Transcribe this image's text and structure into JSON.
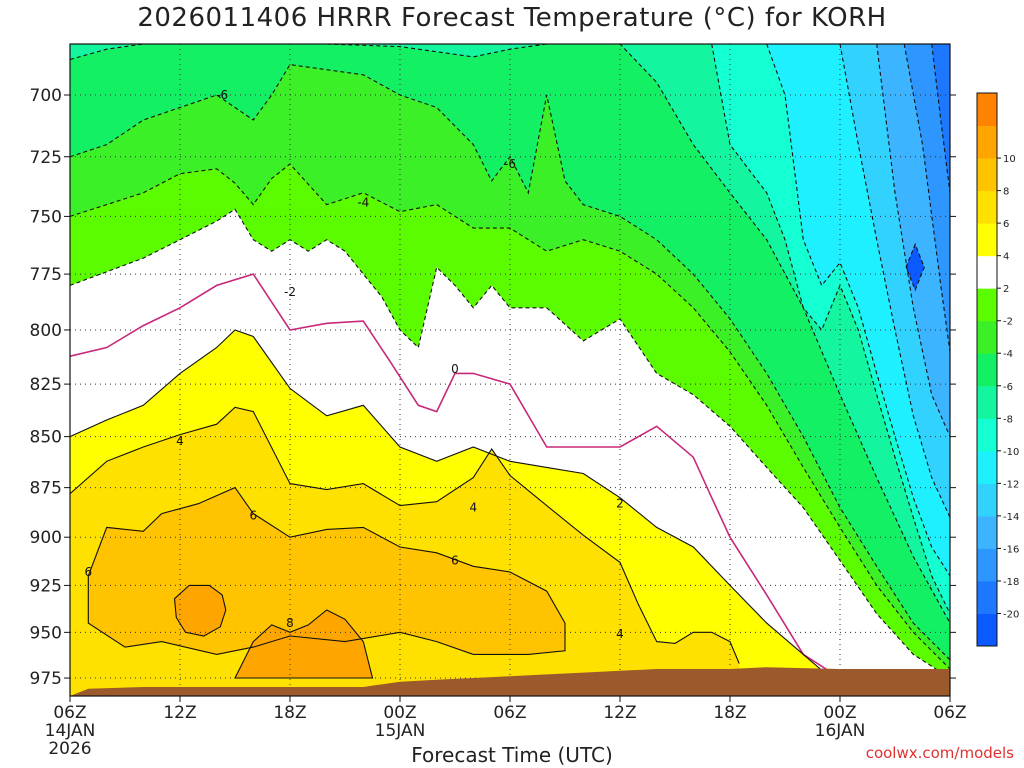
{
  "chart_data": {
    "type": "heatmap",
    "title": "2026011406 HRRR Forecast Temperature (°C) for KORH",
    "xlabel": "Forecast Time (UTC)",
    "ylabel": "",
    "y_scale": "log-pressure (hPa), inverted",
    "ylim": [
      975,
      680
    ],
    "xlim": [
      "2026-01-14 06Z",
      "2026-01-16 06Z"
    ],
    "x_ticks": [
      {
        "hour": 0,
        "label": "06Z",
        "sub1": "14JAN",
        "sub2": "2026"
      },
      {
        "hour": 6,
        "label": "12Z",
        "sub1": "",
        "sub2": ""
      },
      {
        "hour": 12,
        "label": "18Z",
        "sub1": "",
        "sub2": ""
      },
      {
        "hour": 18,
        "label": "00Z",
        "sub1": "15JAN",
        "sub2": ""
      },
      {
        "hour": 24,
        "label": "06Z",
        "sub1": "",
        "sub2": ""
      },
      {
        "hour": 30,
        "label": "12Z",
        "sub1": "",
        "sub2": ""
      },
      {
        "hour": 36,
        "label": "18Z",
        "sub1": "",
        "sub2": ""
      },
      {
        "hour": 42,
        "label": "00Z",
        "sub1": "16JAN",
        "sub2": ""
      },
      {
        "hour": 48,
        "label": "06Z",
        "sub1": "",
        "sub2": ""
      }
    ],
    "y_ticks": [
      700,
      725,
      750,
      775,
      800,
      825,
      850,
      875,
      900,
      925,
      950,
      975
    ],
    "grid": true,
    "colorbar": {
      "placement": "right",
      "levels": [
        -22,
        -20,
        -18,
        -16,
        -14,
        -12,
        -10,
        -8,
        -6,
        -4,
        -2,
        2,
        4,
        6,
        8,
        10,
        12
      ],
      "labels": [
        "-20",
        "-18",
        "-16",
        "-14",
        "-12",
        "-10",
        "-8",
        "-6",
        "-4",
        "-2",
        "2",
        "4",
        "6",
        "8",
        "10"
      ],
      "colors": [
        "#0a5aff",
        "#1e78ff",
        "#2d96ff",
        "#3cb4ff",
        "#32d2ff",
        "#1ef0ff",
        "#14ffd2",
        "#14f5a0",
        "#14f064",
        "#3cf028",
        "#5cfc00",
        "#ffffff",
        "#ffff00",
        "#ffe100",
        "#ffc300",
        "#ffa500",
        "#ff8200"
      ]
    },
    "series": [
      {
        "value": 0,
        "style": "freezing-line",
        "x": [
          0,
          2,
          4,
          6,
          8,
          10,
          12,
          14,
          16,
          17.5,
          19,
          20,
          21,
          22,
          24,
          26,
          28,
          30,
          32,
          34,
          35,
          36,
          38,
          40,
          42,
          42.5
        ],
        "y": [
          812,
          808,
          798,
          790,
          780,
          775,
          800,
          797,
          796,
          815,
          835,
          838,
          820,
          820,
          825,
          855,
          855,
          855,
          845,
          860,
          880,
          900,
          930,
          962,
          975,
          980
        ]
      },
      {
        "value": 2,
        "x": [
          0,
          2,
          4,
          6,
          8,
          9,
          10,
          12,
          14,
          16,
          18,
          20,
          22,
          24,
          26,
          28,
          30,
          32,
          34,
          36,
          38,
          40,
          41.5
        ],
        "y": [
          850,
          842,
          835,
          820,
          808,
          800,
          803,
          827,
          840,
          835,
          855,
          862,
          855,
          862,
          865,
          868,
          880,
          895,
          905,
          925,
          945,
          962,
          975
        ]
      },
      {
        "value": 4,
        "x": [
          0,
          2,
          4,
          6,
          8,
          9,
          10,
          12,
          14,
          16,
          18,
          20,
          22,
          23,
          24,
          26,
          28,
          30,
          31,
          32,
          33,
          34,
          35,
          36,
          36.5
        ],
        "y": [
          878,
          862,
          855,
          849,
          844,
          836,
          838,
          873,
          876,
          873,
          884,
          882,
          870,
          856,
          869,
          884,
          899,
          913,
          935,
          955,
          956,
          950,
          950,
          955,
          967
        ]
      },
      {
        "value": 6,
        "style": "closed",
        "x": [
          1,
          2,
          4,
          5,
          7,
          9,
          10,
          12,
          14,
          16,
          18,
          20,
          22,
          24,
          26,
          27,
          27,
          25,
          22,
          20,
          18,
          15,
          12,
          10,
          8,
          5,
          3,
          1,
          1
        ],
        "y": [
          920,
          895,
          897,
          888,
          883,
          875,
          888,
          900,
          896,
          895,
          905,
          908,
          915,
          918,
          928,
          945,
          960,
          962,
          962,
          955,
          950,
          955,
          952,
          958,
          962,
          955,
          958,
          945,
          920
        ]
      },
      {
        "value": 8,
        "style": "closed",
        "x": [
          5.7,
          6.5,
          7.6,
          8.3,
          8.5,
          8.2,
          7.3,
          6.3,
          5.8,
          5.7
        ],
        "y": [
          932,
          925,
          925,
          930,
          938,
          947,
          952,
          950,
          942,
          932
        ]
      },
      {
        "value": 8,
        "style": "closed",
        "x": [
          9,
          10,
          11,
          12,
          13,
          14,
          15,
          16,
          16.5,
          12,
          10,
          9
        ],
        "y": [
          975,
          955,
          946,
          950,
          946,
          938,
          943,
          955,
          975,
          975,
          975,
          975
        ]
      },
      {
        "value": -2,
        "style": "dashed",
        "x": [
          0,
          2,
          4,
          6,
          8,
          9,
          10,
          11,
          12,
          13,
          14,
          15,
          16,
          17,
          18,
          19,
          20,
          21,
          22,
          23,
          24,
          26,
          28,
          30,
          32,
          34,
          36,
          38,
          40,
          42,
          44,
          46,
          48
        ],
        "y": [
          780,
          774,
          768,
          760,
          752,
          747,
          760,
          765,
          760,
          765,
          760,
          765,
          775,
          785,
          800,
          808,
          772,
          780,
          790,
          780,
          790,
          790,
          805,
          795,
          820,
          830,
          845,
          865,
          885,
          912,
          940,
          962,
          975
        ]
      },
      {
        "value": -4,
        "style": "dashed",
        "x": [
          0,
          2,
          4,
          6,
          8,
          9,
          10,
          11,
          12,
          14,
          16,
          18,
          20,
          22,
          24,
          26,
          28,
          30,
          32,
          34,
          36,
          38,
          40,
          42,
          44,
          46,
          48
        ],
        "y": [
          750,
          745,
          740,
          732,
          730,
          736,
          745,
          734,
          728,
          745,
          740,
          748,
          745,
          755,
          755,
          765,
          760,
          765,
          775,
          790,
          810,
          835,
          865,
          895,
          925,
          950,
          970
        ]
      },
      {
        "value": -6,
        "style": "dashed",
        "x": [
          0,
          2,
          4,
          6,
          8,
          10,
          11,
          12,
          14,
          16,
          18,
          20,
          22,
          23,
          24,
          25,
          26,
          27,
          28,
          30,
          32,
          34,
          36,
          38,
          40,
          42,
          44,
          46,
          48
        ],
        "y": [
          725,
          720,
          710,
          705,
          700,
          710,
          700,
          688,
          690,
          692,
          700,
          705,
          720,
          735,
          725,
          740,
          700,
          735,
          745,
          750,
          760,
          775,
          795,
          820,
          850,
          885,
          915,
          945,
          965
        ]
      },
      {
        "value": -8,
        "style": "dashed",
        "x": [
          0,
          2,
          4,
          6,
          10,
          14,
          18,
          22,
          24,
          26,
          28,
          30,
          32,
          34,
          36,
          38,
          40,
          42,
          44,
          46,
          48
        ],
        "y": [
          686,
          682,
          680,
          680,
          680,
          680,
          681,
          685,
          682,
          680,
          680,
          680,
          695,
          720,
          740,
          760,
          790,
          830,
          870,
          910,
          945
        ]
      },
      {
        "value": -10,
        "style": "dashed",
        "x": [
          35,
          36,
          37,
          38,
          39,
          40,
          41,
          42,
          43,
          44,
          45,
          46,
          47,
          48
        ],
        "y": [
          680,
          720,
          730,
          740,
          760,
          790,
          800,
          780,
          800,
          830,
          860,
          890,
          920,
          940
        ]
      },
      {
        "value": -12,
        "style": "dashed",
        "x": [
          38,
          39,
          40,
          41,
          42,
          43,
          44,
          45,
          46,
          47,
          48
        ],
        "y": [
          680,
          700,
          760,
          780,
          770,
          790,
          820,
          850,
          880,
          905,
          920
        ]
      },
      {
        "value": -14,
        "style": "dashed",
        "x": [
          42,
          43,
          44,
          45,
          46,
          47,
          48
        ],
        "y": [
          680,
          720,
          760,
          800,
          840,
          870,
          890
        ]
      },
      {
        "value": -16,
        "style": "dashed",
        "x": [
          44,
          45,
          46,
          47,
          48
        ],
        "y": [
          680,
          740,
          790,
          830,
          850
        ]
      },
      {
        "value": -18,
        "style": "dashed",
        "x": [
          45.5,
          46.5,
          47.5,
          48
        ],
        "y": [
          680,
          720,
          780,
          810
        ]
      },
      {
        "value": -20,
        "style": "dashed",
        "x": [
          47,
          47.5,
          48
        ],
        "y": [
          680,
          710,
          740
        ]
      },
      {
        "value": -20,
        "style": "closed",
        "x": [
          45.6,
          46.1,
          46.6,
          46.1,
          45.6
        ],
        "y": [
          772,
          762,
          772,
          782,
          772
        ]
      }
    ],
    "ground": {
      "color": "#9c5a2c",
      "x": [
        0,
        1,
        4,
        8,
        12,
        16,
        18,
        20,
        22,
        24,
        26,
        28,
        30,
        32,
        34,
        36,
        38,
        42,
        48
      ],
      "y": [
        985,
        981,
        980,
        980,
        980,
        980,
        977,
        976,
        975,
        974,
        973,
        972,
        971,
        970,
        970,
        970,
        969,
        970,
        970
      ]
    },
    "contour_labels": [
      {
        "text": "-6",
        "x": 8.3,
        "y": 700
      },
      {
        "text": "-6",
        "x": 24,
        "y": 728
      },
      {
        "text": "-4",
        "x": 16,
        "y": 744
      },
      {
        "text": "-2",
        "x": 12,
        "y": 783
      },
      {
        "text": "0",
        "x": 21,
        "y": 818
      },
      {
        "text": "4",
        "x": 6,
        "y": 852
      },
      {
        "text": "4",
        "x": 22,
        "y": 885
      },
      {
        "text": "2",
        "x": 30,
        "y": 883
      },
      {
        "text": "6",
        "x": 10,
        "y": 889
      },
      {
        "text": "6",
        "x": 1,
        "y": 918
      },
      {
        "text": "6",
        "x": 21,
        "y": 912
      },
      {
        "text": "8",
        "x": 12,
        "y": 945
      },
      {
        "text": "4",
        "x": 30,
        "y": 951
      }
    ]
  },
  "footer": {
    "xlabel": "Forecast Time (UTC)",
    "credit": "coolwx.com/models"
  }
}
